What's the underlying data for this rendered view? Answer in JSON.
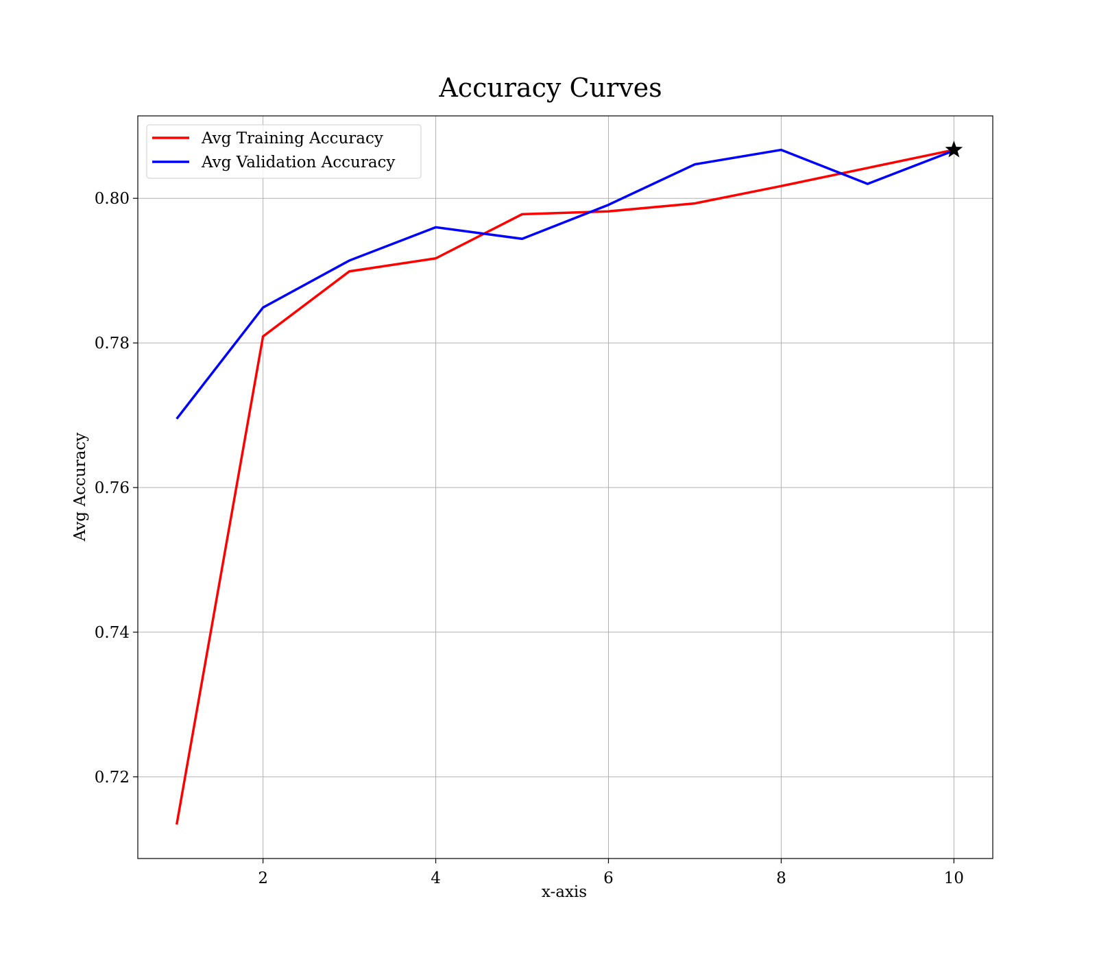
{
  "chart_data": {
    "type": "line",
    "title": "Accuracy Curves",
    "xlabel": "x-axis",
    "ylabel": "Avg Accuracy",
    "x": [
      1,
      2,
      3,
      4,
      5,
      6,
      7,
      8,
      9,
      10
    ],
    "xlim": [
      0.55,
      10.45
    ],
    "ylim": [
      0.7087,
      0.8114
    ],
    "xticks": [
      2,
      4,
      6,
      8,
      10
    ],
    "yticks": [
      0.72,
      0.74,
      0.76,
      0.78,
      0.8
    ],
    "ytick_labels": [
      "0.72",
      "0.74",
      "0.76",
      "0.78",
      "0.80"
    ],
    "xtick_labels": [
      "2",
      "4",
      "6",
      "8",
      "10"
    ],
    "grid": true,
    "legend_position": "top-left",
    "series": [
      {
        "name": "Avg Training Accuracy",
        "color": "#ff0000",
        "values": [
          0.7134,
          0.7809,
          0.7899,
          0.7917,
          0.7978,
          0.7982,
          0.7993,
          0.8017,
          0.8042,
          0.8067
        ]
      },
      {
        "name": "Avg Validation Accuracy",
        "color": "#0000ff",
        "values": [
          0.7695,
          0.7849,
          0.7914,
          0.796,
          0.7944,
          0.7991,
          0.8047,
          0.8067,
          0.802,
          0.8066
        ]
      }
    ],
    "marker": {
      "shape": "star",
      "x": 10,
      "y": 0.8067,
      "color": "#000000"
    }
  }
}
